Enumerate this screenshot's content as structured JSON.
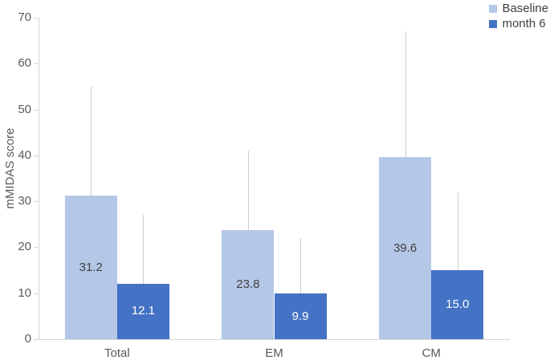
{
  "chart_data": {
    "type": "bar",
    "title": "",
    "xlabel": "",
    "ylabel": "mMIDAS score",
    "ylim": [
      0,
      70
    ],
    "yticks": [
      0,
      10,
      20,
      30,
      40,
      50,
      60,
      70
    ],
    "categories": [
      "Total",
      "EM",
      "CM"
    ],
    "series": [
      {
        "name": "Baseline",
        "color": "#b4c7e7",
        "label_color": "#404040",
        "values": [
          31.2,
          23.8,
          39.6
        ],
        "labels": [
          "31.2",
          "23.8",
          "39.6"
        ],
        "error_top": [
          55,
          41,
          67
        ]
      },
      {
        "name": "month 6",
        "color": "#4472c4",
        "label_color": "#ffffff",
        "values": [
          12.1,
          9.9,
          15.0
        ],
        "labels": [
          "12.1",
          "9.9",
          "15.0"
        ],
        "error_top": [
          27,
          22,
          32
        ]
      }
    ],
    "legend_position": "top-right",
    "grid": false,
    "background": "#ffffff",
    "axis_color": "#d6d6d6",
    "error_bar_color": "#cccccc",
    "tick_label_color": "#595959"
  }
}
